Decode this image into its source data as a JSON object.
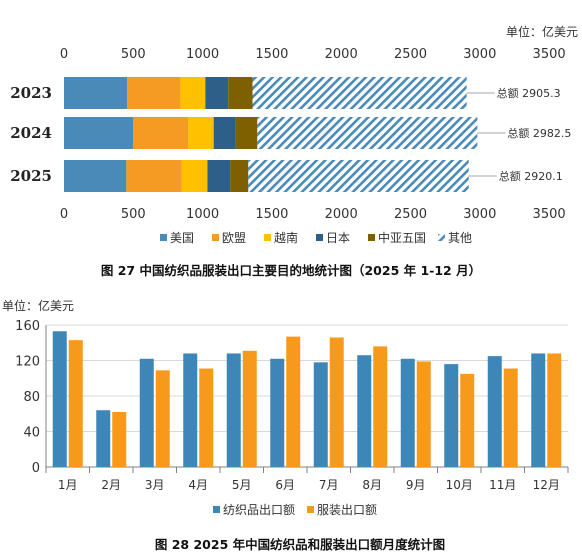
{
  "chart_data": [
    {
      "type": "bar",
      "orientation": "horizontal",
      "stacked": true,
      "unit_label": "单位：亿美元",
      "categories": [
        "2023",
        "2024",
        "2025"
      ],
      "series": [
        {
          "name": "美国",
          "values": [
            455,
            500,
            450
          ],
          "color": "#4a8ab9"
        },
        {
          "name": "欧盟",
          "values": [
            385,
            395,
            400
          ],
          "color": "#f59a23"
        },
        {
          "name": "越南",
          "values": [
            180,
            185,
            185
          ],
          "color": "#ffc000"
        },
        {
          "name": "日本",
          "values": [
            165,
            160,
            165
          ],
          "color": "#2e5f88"
        },
        {
          "name": "中亚五国",
          "values": [
            175,
            155,
            130
          ],
          "color": "#7f6000"
        },
        {
          "name": "其他",
          "values": [
            1545.3,
            1587.5,
            1590.1
          ],
          "color": "#4a8ab9",
          "pattern": "hatch"
        }
      ],
      "totals": [
        2905.3,
        2982.5,
        2920.1
      ],
      "total_labels": [
        "总额 2905.3",
        "总额 2982.5",
        "总额 2920.1"
      ],
      "xlim": [
        0,
        3500
      ],
      "xticks": [
        0,
        500,
        1000,
        1500,
        2000,
        2500,
        3000,
        3500
      ],
      "legend_position": "bottom",
      "caption": "图 27    中国纺织品服装出口主要目的地统计图（2025 年 1-12 月）"
    },
    {
      "type": "bar",
      "unit_label": "单位：亿美元",
      "categories": [
        "1月",
        "2月",
        "3月",
        "4月",
        "5月",
        "6月",
        "7月",
        "8月",
        "9月",
        "10月",
        "11月",
        "12月"
      ],
      "series": [
        {
          "name": "纺织品出口额",
          "values": [
            153,
            64,
            122,
            128,
            128,
            122,
            118,
            126,
            122,
            116,
            125,
            128
          ],
          "color": "#3d86b8"
        },
        {
          "name": "服装出口额",
          "values": [
            143,
            62,
            109,
            111,
            131,
            147,
            146,
            136,
            119,
            105,
            111,
            128
          ],
          "color": "#f79a1b"
        }
      ],
      "ylim": [
        0,
        160
      ],
      "yticks": [
        0,
        40,
        80,
        120,
        160
      ],
      "legend_position": "bottom",
      "caption": "图 28    2025 年中国纺织品和服装出口额月度统计图"
    }
  ]
}
